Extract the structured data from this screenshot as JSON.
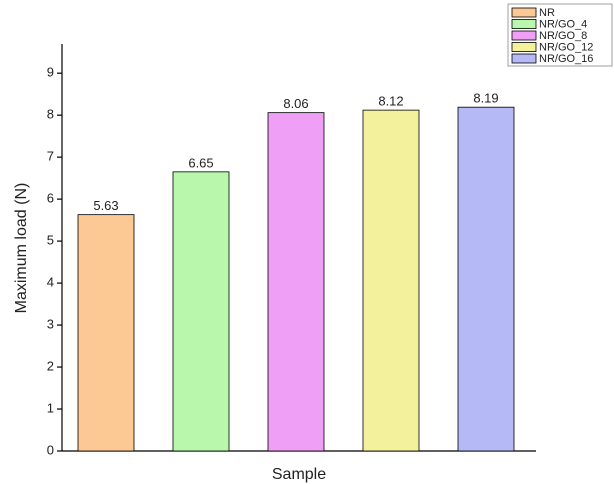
{
  "chart_data": {
    "type": "bar",
    "categories": [
      "NR",
      "NR/GO_4",
      "NR/GO_8",
      "NR/GO_12",
      "NR/GO_16"
    ],
    "values": [
      5.63,
      6.65,
      8.06,
      8.12,
      8.19
    ],
    "colors": [
      "#fcc894",
      "#b9f7ac",
      "#ef9ff6",
      "#f4f19c",
      "#b5b9f6"
    ],
    "xlabel": "Sample",
    "ylabel": "Maximum load (N)",
    "ylim": [
      0,
      9.6
    ],
    "yticks": [
      0,
      1,
      2,
      3,
      4,
      5,
      6,
      7,
      8,
      9
    ],
    "grid": false,
    "legend": "top-right"
  }
}
